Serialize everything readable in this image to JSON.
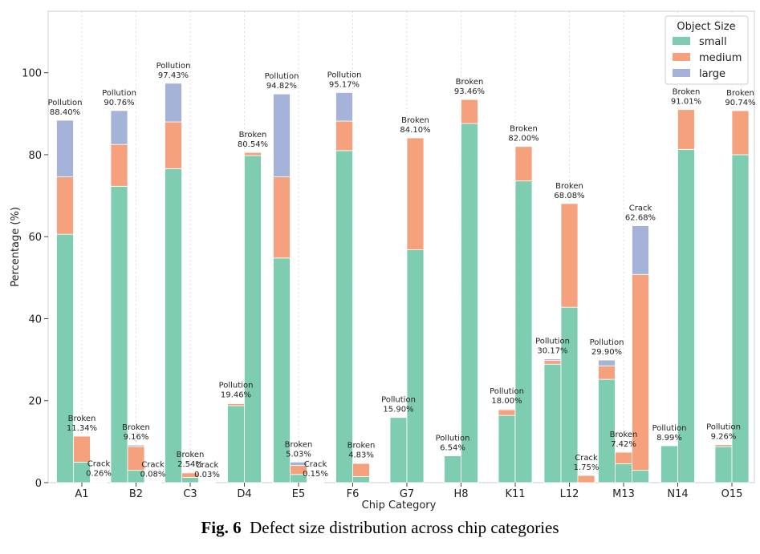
{
  "caption": {
    "fig_label": "Fig. 6",
    "text": "Defect size distribution across chip categories"
  },
  "chart_data": {
    "type": "bar",
    "stacked": true,
    "grouped": true,
    "xlabel": "Chip Category",
    "ylabel": "Percentage (%)",
    "ylim": [
      0,
      115
    ],
    "yticks": [
      0,
      20,
      40,
      60,
      80,
      100
    ],
    "grid": "vertical dotted",
    "legend": {
      "title": "Object Size",
      "placement": "top-right",
      "entries": [
        "small",
        "medium",
        "large"
      ]
    },
    "colors": {
      "small": "#7fcdb0",
      "medium": "#f6a17e",
      "large": "#a5b3d8"
    },
    "categories": [
      "A1",
      "B2",
      "C3",
      "D4",
      "E5",
      "F6",
      "G7",
      "H8",
      "K11",
      "L12",
      "M13",
      "N14",
      "O15"
    ],
    "groups": [
      {
        "category": "A1",
        "bars": [
          {
            "defect": "Pollution",
            "total_label": "88.40%",
            "small": 60.6,
            "medium": 14.0,
            "large": 13.8
          },
          {
            "defect": "Broken",
            "total_label": "11.34%",
            "small": 5.0,
            "medium": 6.34,
            "large": 0
          },
          {
            "defect": "Crack",
            "total_label": "0.26%",
            "small": 0.2,
            "medium": 0.06,
            "large": 0
          }
        ]
      },
      {
        "category": "B2",
        "bars": [
          {
            "defect": "Pollution",
            "total_label": "90.76%",
            "small": 72.3,
            "medium": 10.2,
            "large": 8.26
          },
          {
            "defect": "Broken",
            "total_label": "9.16%",
            "small": 3.0,
            "medium": 5.8,
            "large": 0.36
          },
          {
            "defect": "Crack",
            "total_label": "0.08%",
            "small": 0.05,
            "medium": 0.03,
            "large": 0
          }
        ]
      },
      {
        "category": "C3",
        "bars": [
          {
            "defect": "Pollution",
            "total_label": "97.43%",
            "small": 76.6,
            "medium": 11.4,
            "large": 9.43
          },
          {
            "defect": "Broken",
            "total_label": "2.54%",
            "small": 1.3,
            "medium": 1.1,
            "large": 0.14
          },
          {
            "defect": "Crack",
            "total_label": "0.03%",
            "small": 0.02,
            "medium": 0.01,
            "large": 0
          }
        ]
      },
      {
        "category": "D4",
        "bars": [
          {
            "defect": "Pollution",
            "total_label": "19.46%",
            "small": 18.8,
            "medium": 0.5,
            "large": 0.16
          },
          {
            "defect": "Broken",
            "total_label": "80.54%",
            "small": 79.8,
            "medium": 0.74,
            "large": 0
          }
        ]
      },
      {
        "category": "E5",
        "bars": [
          {
            "defect": "Pollution",
            "total_label": "94.82%",
            "small": 54.8,
            "medium": 19.8,
            "large": 20.22
          },
          {
            "defect": "Broken",
            "total_label": "5.03%",
            "small": 2.0,
            "medium": 2.2,
            "large": 0.83
          },
          {
            "defect": "Crack",
            "total_label": "0.15%",
            "small": 0.1,
            "medium": 0.05,
            "large": 0
          }
        ]
      },
      {
        "category": "F6",
        "bars": [
          {
            "defect": "Pollution",
            "total_label": "95.17%",
            "small": 81.0,
            "medium": 7.2,
            "large": 6.97
          },
          {
            "defect": "Broken",
            "total_label": "4.83%",
            "small": 1.5,
            "medium": 3.2,
            "large": 0.13
          }
        ]
      },
      {
        "category": "G7",
        "bars": [
          {
            "defect": "Pollution",
            "total_label": "15.90%",
            "small": 15.9,
            "medium": 0,
            "large": 0
          },
          {
            "defect": "Broken",
            "total_label": "84.10%",
            "small": 56.8,
            "medium": 27.3,
            "large": 0
          }
        ]
      },
      {
        "category": "H8",
        "bars": [
          {
            "defect": "Pollution",
            "total_label": "6.54%",
            "small": 6.54,
            "medium": 0,
            "large": 0
          },
          {
            "defect": "Broken",
            "total_label": "93.46%",
            "small": 87.6,
            "medium": 5.86,
            "large": 0
          }
        ]
      },
      {
        "category": "K11",
        "bars": [
          {
            "defect": "Pollution",
            "total_label": "18.00%",
            "small": 16.4,
            "medium": 1.4,
            "large": 0.2
          },
          {
            "defect": "Broken",
            "total_label": "82.00%",
            "small": 73.6,
            "medium": 8.4,
            "large": 0
          }
        ]
      },
      {
        "category": "L12",
        "bars": [
          {
            "defect": "Pollution",
            "total_label": "30.17%",
            "small": 28.9,
            "medium": 0.9,
            "large": 0.37
          },
          {
            "defect": "Broken",
            "total_label": "68.08%",
            "small": 42.8,
            "medium": 25.28,
            "large": 0
          },
          {
            "defect": "Crack",
            "total_label": "1.75%",
            "small": 0,
            "medium": 1.75,
            "large": 0
          }
        ]
      },
      {
        "category": "M13",
        "bars": [
          {
            "defect": "Pollution",
            "total_label": "29.90%",
            "small": 25.2,
            "medium": 3.3,
            "large": 1.4
          },
          {
            "defect": "Broken",
            "total_label": "7.42%",
            "small": 4.6,
            "medium": 2.82,
            "large": 0
          },
          {
            "defect": "Crack",
            "total_label": "62.68%",
            "small": 3.0,
            "medium": 47.8,
            "large": 11.88
          }
        ]
      },
      {
        "category": "N14",
        "bars": [
          {
            "defect": "Pollution",
            "total_label": "8.99%",
            "small": 8.99,
            "medium": 0,
            "large": 0
          },
          {
            "defect": "Broken",
            "total_label": "91.01%",
            "small": 81.3,
            "medium": 9.71,
            "large": 0
          }
        ]
      },
      {
        "category": "O15",
        "bars": [
          {
            "defect": "Pollution",
            "total_label": "9.26%",
            "small": 8.8,
            "medium": 0.46,
            "large": 0
          },
          {
            "defect": "Broken",
            "total_label": "90.74%",
            "small": 80.0,
            "medium": 10.74,
            "large": 0
          }
        ]
      }
    ]
  }
}
